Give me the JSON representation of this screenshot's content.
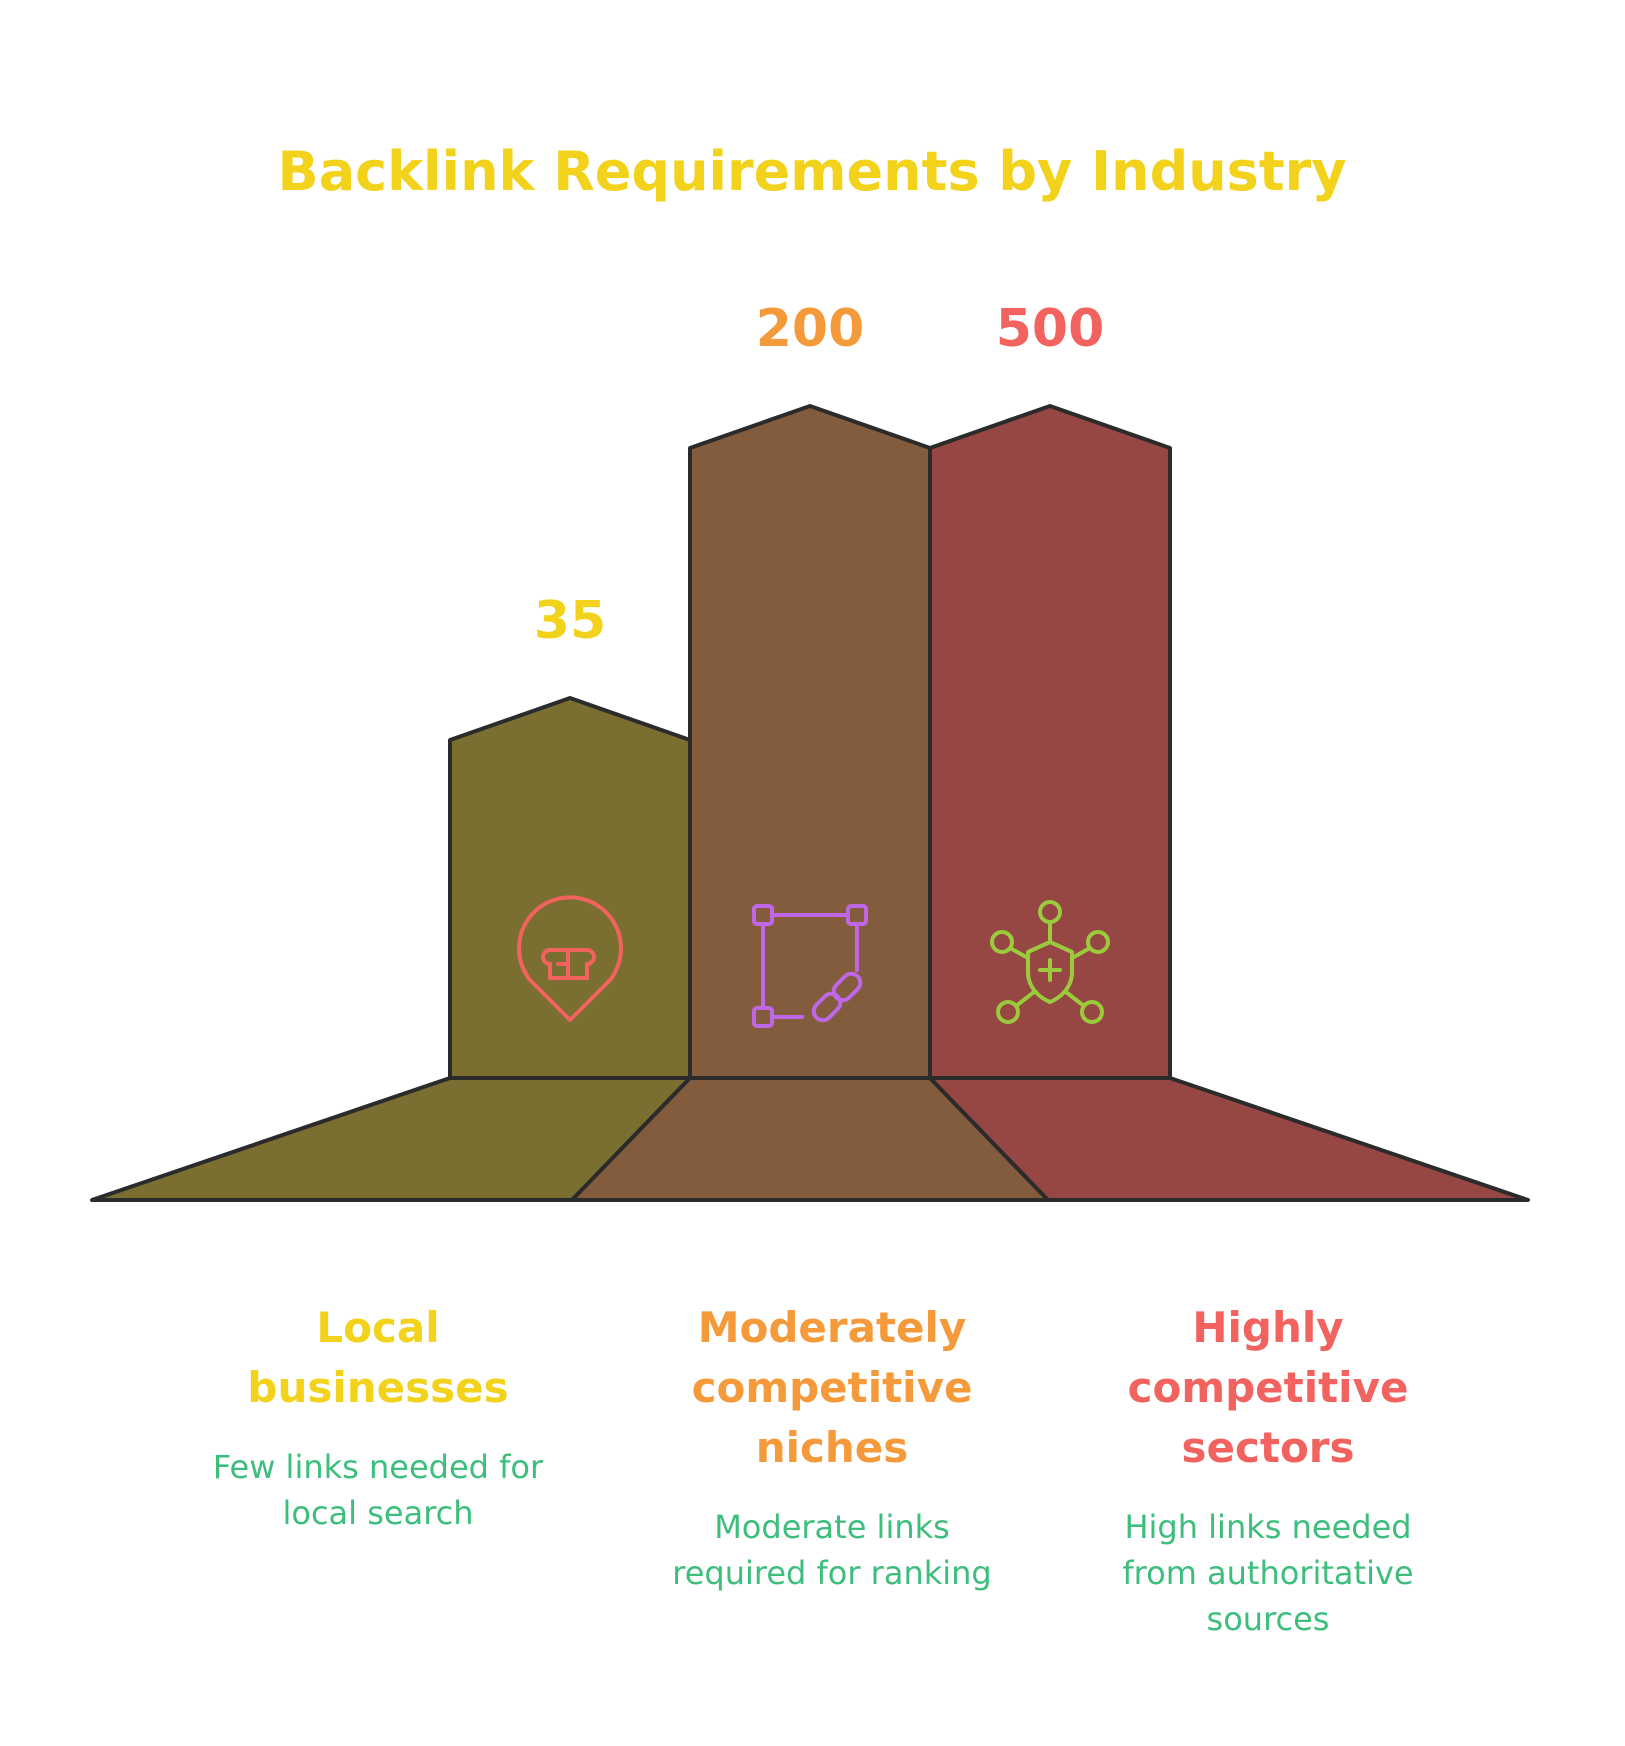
{
  "title": "Backlink Requirements by Industry",
  "colors": {
    "title": "#F2D21B",
    "description": "#3DBE7C",
    "outline": "#2B2B2B"
  },
  "chart_data": {
    "type": "bar",
    "title": "Backlink Requirements by Industry",
    "categories": [
      {
        "name_lines": [
          "Local",
          "businesses"
        ],
        "value": 35,
        "value_label": "35",
        "description_lines": [
          "Few links needed for",
          "local search"
        ],
        "fill": "#7A6F31",
        "label_color": "#F2D21B",
        "icon": "map-pin-store-icon",
        "icon_color": "#F2625E"
      },
      {
        "name_lines": [
          "Moderately",
          "competitive",
          "niches"
        ],
        "value": 200,
        "value_label": "200",
        "description_lines": [
          "Moderate links",
          "required for ranking"
        ],
        "fill": "#825C3D",
        "label_color": "#F59A3A",
        "icon": "link-square-icon",
        "icon_color": "#C067E8"
      },
      {
        "name_lines": [
          "Highly",
          "competitive",
          "sectors"
        ],
        "value": 500,
        "value_label": "500",
        "description_lines": [
          "High links needed",
          "from authoritative",
          "sources"
        ],
        "fill": "#964643",
        "label_color": "#F2625E",
        "icon": "shield-network-icon",
        "icon_color": "#9BCB3C"
      }
    ]
  }
}
